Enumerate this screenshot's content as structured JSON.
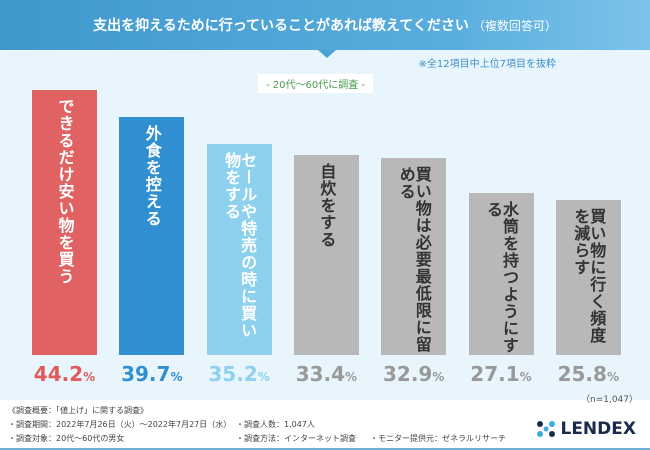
{
  "header": {
    "title": "支出を抑えるために行っていることがあれば教えてください",
    "title_suffix": "（複数回答可）"
  },
  "note": "※全12項目中上位7項目を抜粋",
  "subtitle": "- 20代～60代に調査 -",
  "chart_data": {
    "type": "bar",
    "categories": [
      "できるだけ安い物を買う",
      "外食を控える",
      "セールや特売の時に買い物をする",
      "自炊をする",
      "買い物は必要最低限に留める",
      "水筒を持つようにする",
      "買い物に行く頻度を減らす"
    ],
    "values": [
      44.2,
      39.7,
      35.2,
      33.4,
      32.9,
      27.1,
      25.8
    ],
    "value_labels": [
      "44.2",
      "39.7",
      "35.2",
      "33.4",
      "32.9",
      "27.1",
      "25.8"
    ],
    "unit": "%",
    "colors": [
      "#e06262",
      "#2f8fd0",
      "#8ed1ef",
      "#b8b8b8",
      "#b8b8b8",
      "#b8b8b8",
      "#b8b8b8"
    ],
    "label_colors": [
      "#fff",
      "#fff",
      "#fff",
      "#333",
      "#333",
      "#333",
      "#333"
    ],
    "value_colors": [
      "#e05a5a",
      "#2f8fd0",
      "#8ed1ef",
      "#999",
      "#999",
      "#999",
      "#999"
    ],
    "ylim": [
      0,
      44.2
    ]
  },
  "n_label": "（n=1,047）",
  "footer": {
    "title": "《調査概要：「値上げ」に関する調査》",
    "period": "・調査期間：2022年7月26日（火）～2022年7月27日（水）",
    "people": "・調査人数：1,047人",
    "target": "・調査対象：20代～60代の男女",
    "method": "・調査方法：インターネット調査",
    "provider": "・モニター提供元：ゼネラルリサーチ"
  },
  "logo": "LENDEX"
}
